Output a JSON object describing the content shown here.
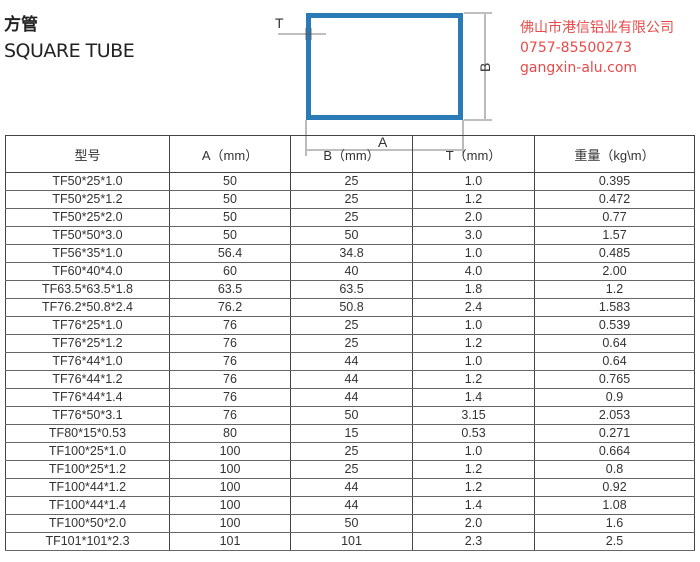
{
  "header": {
    "title_cn": "方管",
    "title_en": "SQUARE TUBE"
  },
  "diagram": {
    "label_t": "T",
    "label_b": "B",
    "label_a": "A",
    "tube_color": "#2a7ab5"
  },
  "table": {
    "columns": [
      "型号",
      "A（mm）",
      "B（mm）",
      "T（mm）",
      "重量（kg\\m）"
    ],
    "rows": [
      [
        "TF50*25*1.0",
        "50",
        "25",
        "1.0",
        "0.395"
      ],
      [
        "TF50*25*1.2",
        "50",
        "25",
        "1.2",
        "0.472"
      ],
      [
        "TF50*25*2.0",
        "50",
        "25",
        "2.0",
        "0.77"
      ],
      [
        "TF50*50*3.0",
        "50",
        "50",
        "3.0",
        "1.57"
      ],
      [
        "TF56*35*1.0",
        "56.4",
        "34.8",
        "1.0",
        "0.485"
      ],
      [
        "TF60*40*4.0",
        "60",
        "40",
        "4.0",
        "2.00"
      ],
      [
        "TF63.5*63.5*1.8",
        "63.5",
        "63.5",
        "1.8",
        "1.2"
      ],
      [
        "TF76.2*50.8*2.4",
        "76.2",
        "50.8",
        "2.4",
        "1.583"
      ],
      [
        "TF76*25*1.0",
        "76",
        "25",
        "1.0",
        "0.539"
      ],
      [
        "TF76*25*1.2",
        "76",
        "25",
        "1.2",
        "0.64"
      ],
      [
        "TF76*44*1.0",
        "76",
        "44",
        "1.0",
        "0.64"
      ],
      [
        "TF76*44*1.2",
        "76",
        "44",
        "1.2",
        "0.765"
      ],
      [
        "TF76*44*1.4",
        "76",
        "44",
        "1.4",
        "0.9"
      ],
      [
        "TF76*50*3.1",
        "76",
        "50",
        "3.15",
        "2.053"
      ],
      [
        "TF80*15*0.53",
        "80",
        "15",
        "0.53",
        "0.271"
      ],
      [
        "TF100*25*1.0",
        "100",
        "25",
        "1.0",
        "0.664"
      ],
      [
        "TF100*25*1.2",
        "100",
        "25",
        "1.2",
        "0.8"
      ],
      [
        "TF100*44*1.2",
        "100",
        "44",
        "1.2",
        "0.92"
      ],
      [
        "TF100*44*1.4",
        "100",
        "44",
        "1.4",
        "1.08"
      ],
      [
        "TF100*50*2.0",
        "100",
        "50",
        "2.0",
        "1.6"
      ],
      [
        "TF101*101*2.3",
        "101",
        "101",
        "2.3",
        "2.5"
      ]
    ]
  },
  "watermark": {
    "company": "佛山市港信铝业有限公司",
    "phone": "0757-85500273",
    "site": "gangxin-alu.com"
  }
}
